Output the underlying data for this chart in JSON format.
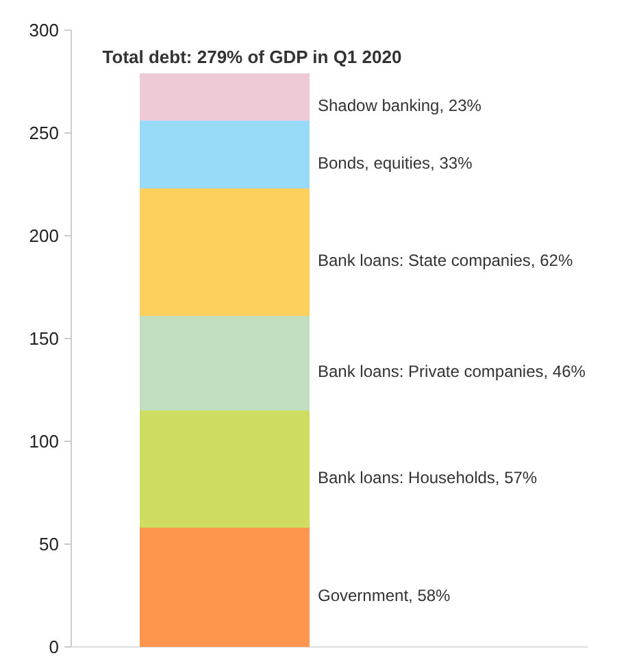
{
  "chart_data": {
    "type": "bar",
    "title": "Total debt: 279% of GDP in Q1 2020",
    "categories": [
      null
    ],
    "stacked": true,
    "ylim": [
      0,
      300
    ],
    "yticks": [
      0,
      50,
      100,
      150,
      200,
      250,
      300
    ],
    "grid": false,
    "series": [
      {
        "name": "Government, 58%",
        "color": "#ff9650",
        "values": [
          58
        ]
      },
      {
        "name": "Bank loans: Households, 57%",
        "color": "#cfdc62",
        "values": [
          57
        ]
      },
      {
        "name": "Bank loans: Private companies, 46%",
        "color": "#c1dfc0",
        "values": [
          46
        ]
      },
      {
        "name": "Bank loans: State companies, 62%",
        "color": "#fdd05e",
        "values": [
          62
        ]
      },
      {
        "name": "Bonds, equities, 33%",
        "color": "#97dbf8",
        "values": [
          33
        ]
      },
      {
        "name": "Shadow banking, 23%",
        "color": "#edcad5",
        "values": [
          23
        ]
      }
    ]
  }
}
